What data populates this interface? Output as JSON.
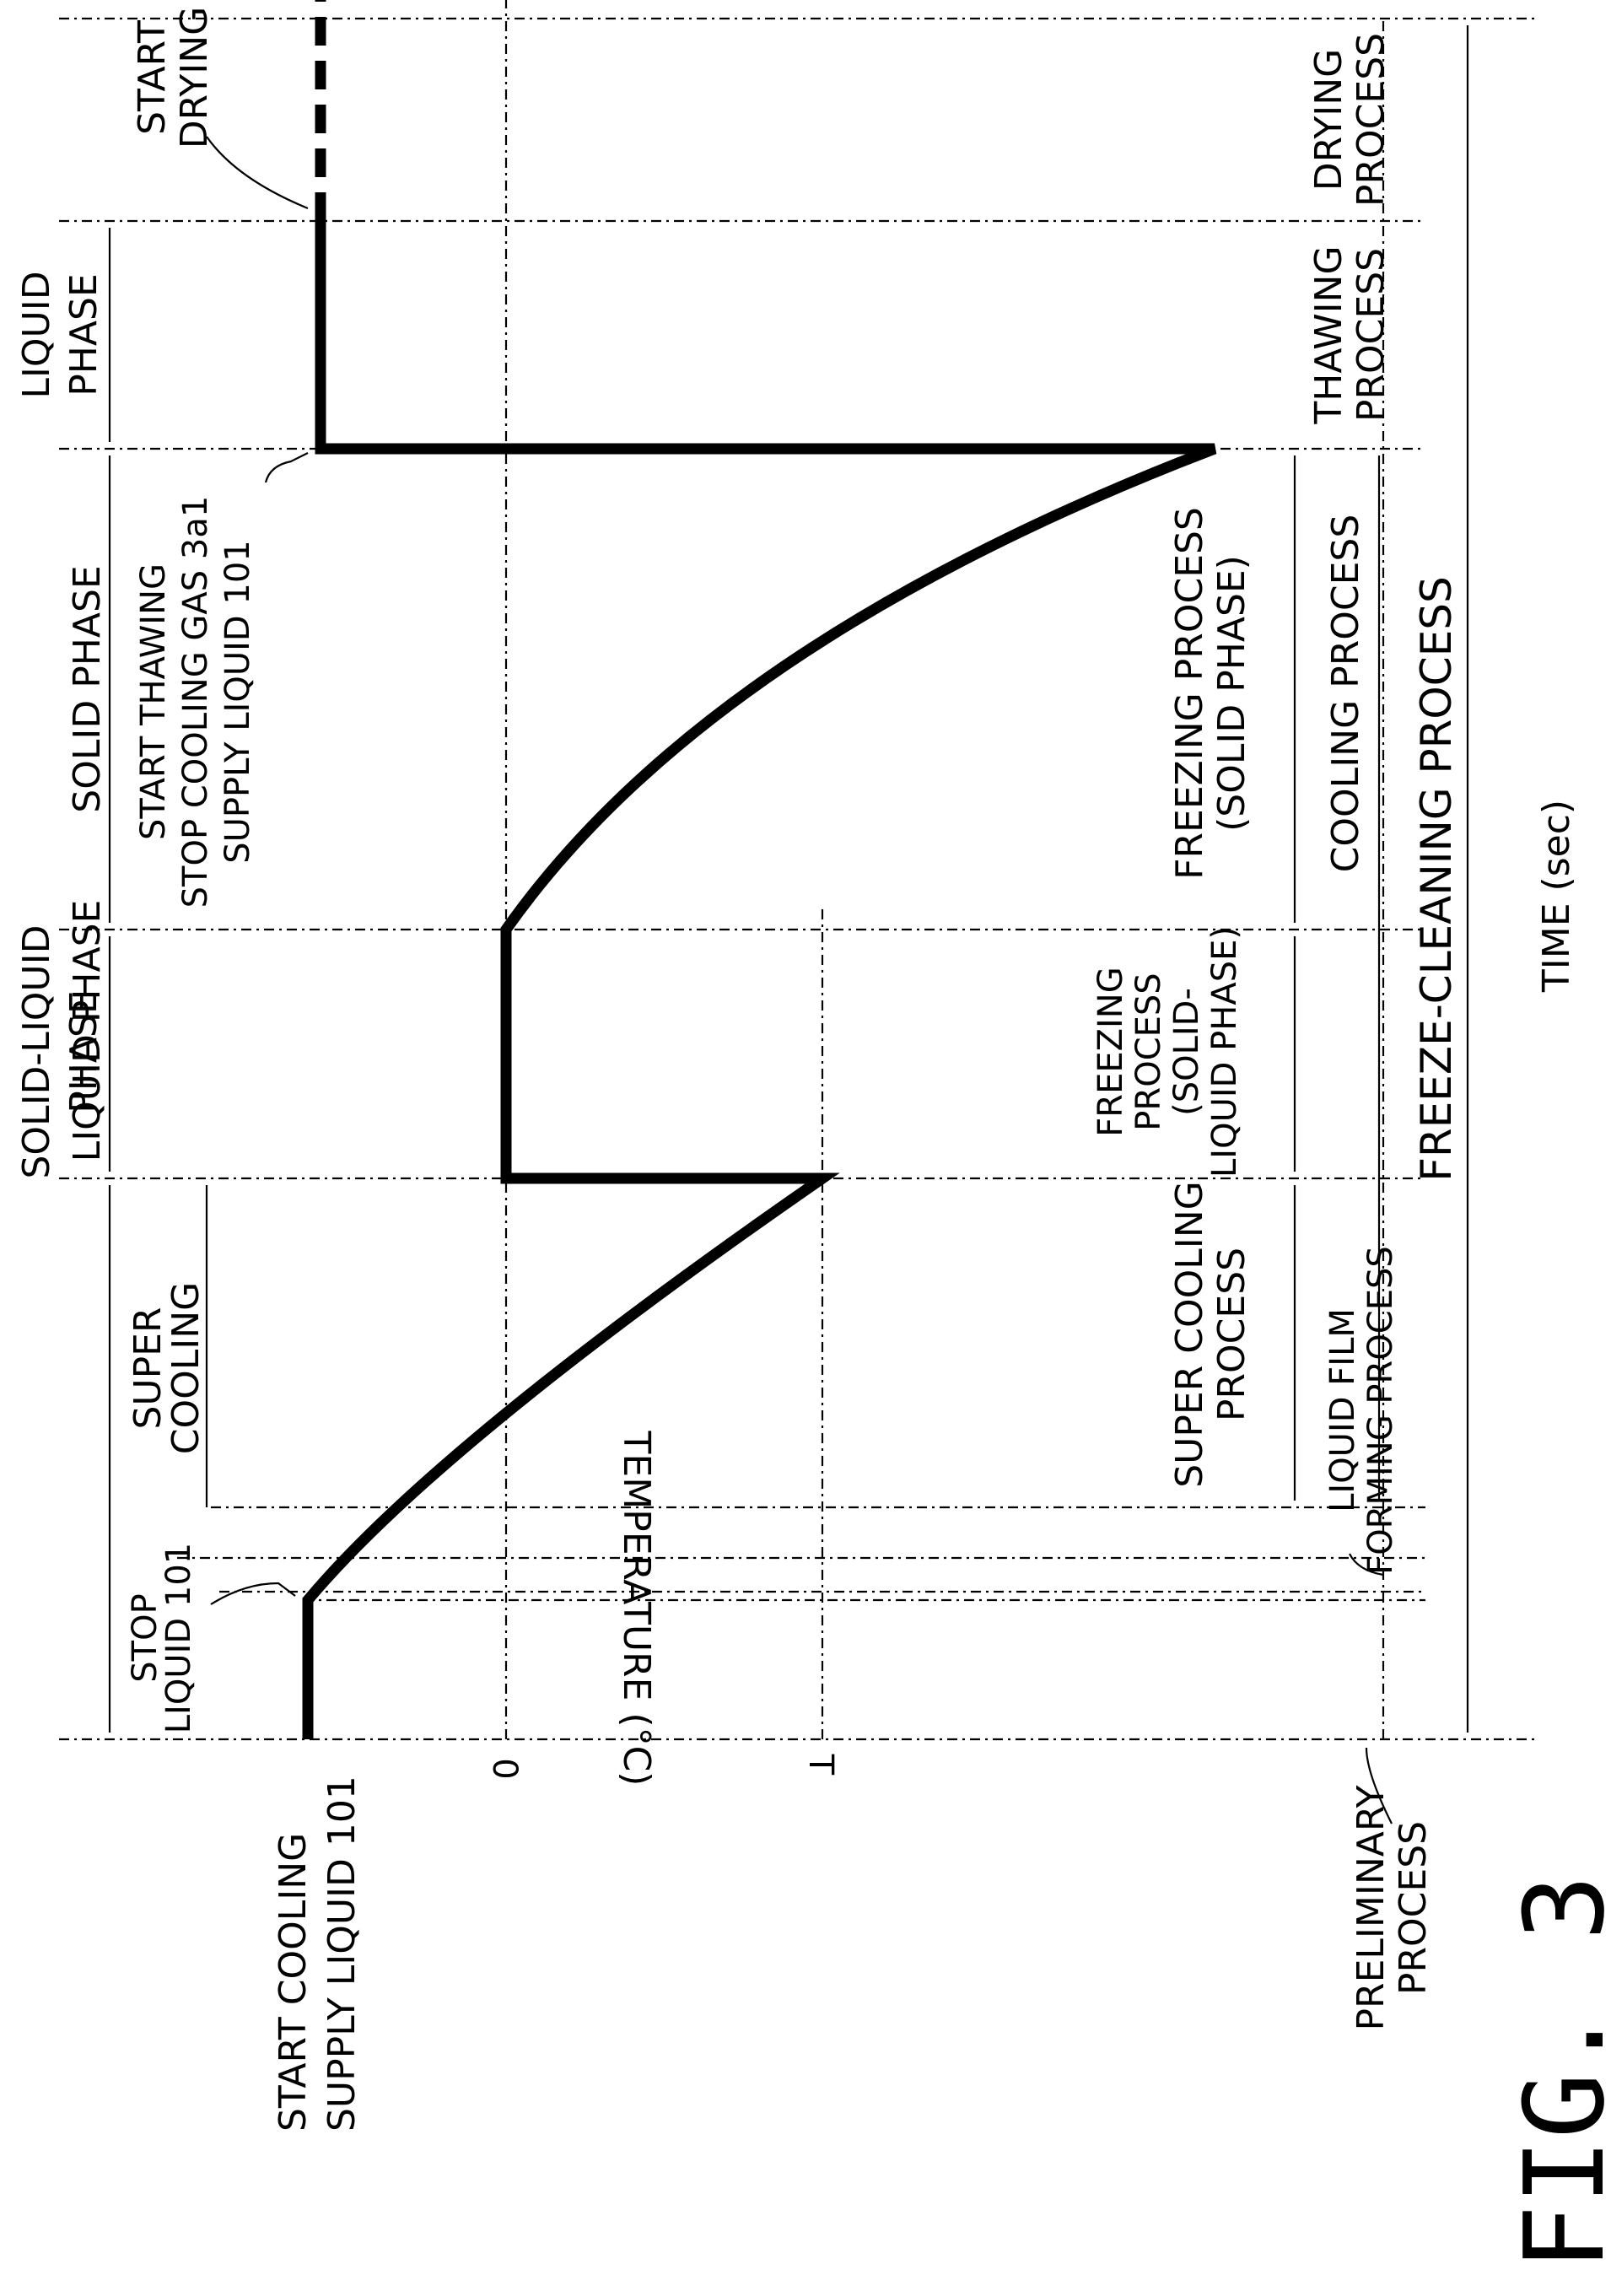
{
  "figure_label": "FIG. 3",
  "axes": {
    "y_label": "TEMPERATURE",
    "y_unit": "(°C)",
    "x_label": "TIME",
    "x_unit": "(sec)",
    "y_tick_0": "0",
    "y_tick_t": "T"
  },
  "phases": {
    "liquid_1": "LIQUID PHASE",
    "solid_liquid": [
      "SOLID-LIQUID",
      "PHASE"
    ],
    "solid": "SOLID PHASE",
    "liquid_2": [
      "LIQUID",
      "PHASE"
    ],
    "super_cooling": [
      "SUPER",
      "COOLING"
    ]
  },
  "events": {
    "start_cooling": [
      "START COOLING",
      "SUPPLY LIQUID 101"
    ],
    "stop_liquid": [
      "STOP",
      "LIQUID 101"
    ],
    "start_thawing": [
      "START THAWING",
      "STOP COOLING GAS 3a1",
      "SUPPLY LIQUID 101"
    ],
    "start_drying": [
      "START",
      "DRYING"
    ]
  },
  "processes": {
    "preliminary": [
      "PRELIMINARY",
      "PROCESS"
    ],
    "liquid_film": [
      "LIQUID FILM",
      "FORMING PROCESS"
    ],
    "super_cooling": [
      "SUPER COOLING",
      "PROCESS"
    ],
    "freezing_solid_liquid": [
      "FREEZING",
      "PROCESS",
      "(SOLID-",
      "LIQUID PHASE)"
    ],
    "freezing_solid": [
      "FREEZING PROCESS",
      "(SOLID PHASE)"
    ],
    "cooling": "COOLING PROCESS",
    "thawing": [
      "THAWING",
      "PROCESS"
    ],
    "drying": [
      "DRYING",
      "PROCESS"
    ],
    "freeze_cleaning": "FREEZE-CLEANING PROCESS"
  }
}
